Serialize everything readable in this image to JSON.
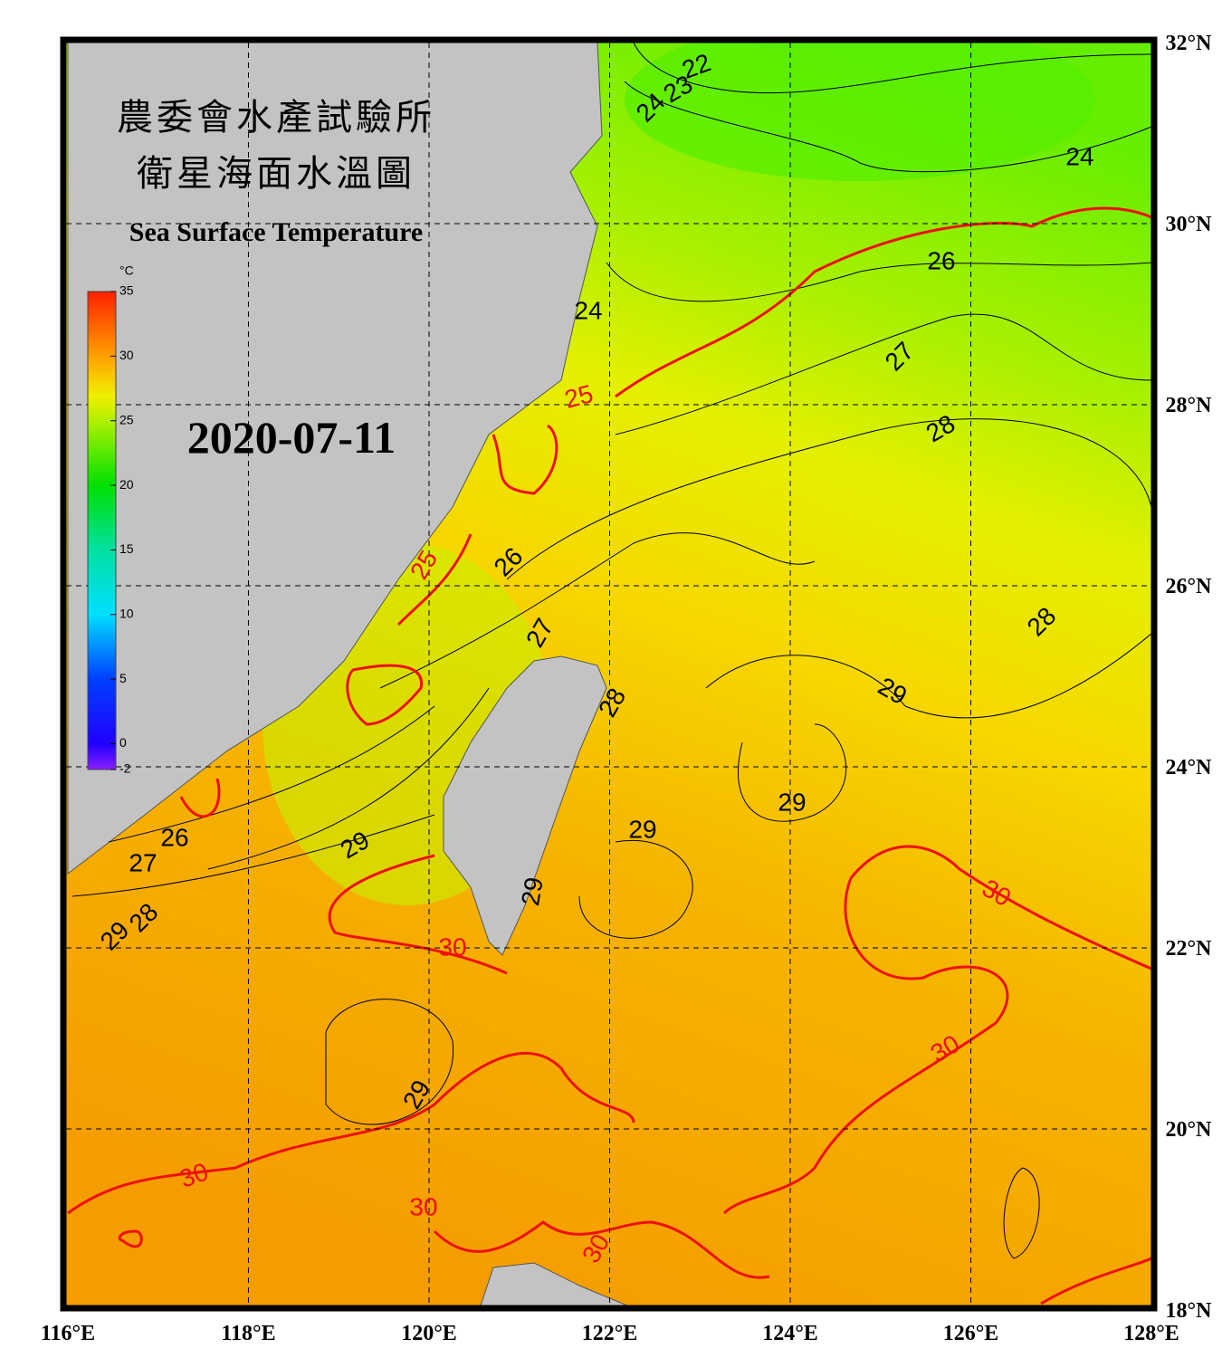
{
  "header": {
    "title_zh": [
      "農委會水產試驗所",
      "衛星海面水溫圖"
    ],
    "title_en": "Sea Surface Temperature",
    "date": "2020-07-11"
  },
  "colorbar": {
    "unit": "°C",
    "ticks": [
      35,
      30,
      25,
      20,
      15,
      10,
      5,
      0,
      -2
    ]
  },
  "axes": {
    "lon_labels": [
      "116°E",
      "118°E",
      "120°E",
      "122°E",
      "124°E",
      "126°E",
      "128°E"
    ],
    "lat_labels": [
      "32°N",
      "30°N",
      "28°N",
      "26°N",
      "24°N",
      "22°N",
      "20°N",
      "18°N"
    ]
  },
  "contours": {
    "labels": [
      {
        "text": "22",
        "color": "black"
      },
      {
        "text": "23",
        "color": "black"
      },
      {
        "text": "24",
        "color": "black"
      },
      {
        "text": "24",
        "color": "black"
      },
      {
        "text": "24",
        "color": "black"
      },
      {
        "text": "25",
        "color": "red"
      },
      {
        "text": "26",
        "color": "black"
      },
      {
        "text": "27",
        "color": "black"
      },
      {
        "text": "28",
        "color": "black"
      },
      {
        "text": "25",
        "color": "red"
      },
      {
        "text": "26",
        "color": "black"
      },
      {
        "text": "27",
        "color": "black"
      },
      {
        "text": "28",
        "color": "black"
      },
      {
        "text": "28",
        "color": "black"
      },
      {
        "text": "29",
        "color": "black"
      },
      {
        "text": "29",
        "color": "black"
      },
      {
        "text": "29",
        "color": "black"
      },
      {
        "text": "29",
        "color": "black"
      },
      {
        "text": "26",
        "color": "black"
      },
      {
        "text": "27",
        "color": "black"
      },
      {
        "text": "28",
        "color": "black"
      },
      {
        "text": "29",
        "color": "black"
      },
      {
        "text": "29",
        "color": "black"
      },
      {
        "text": "30",
        "color": "red"
      },
      {
        "text": "30",
        "color": "red"
      },
      {
        "text": "30",
        "color": "red"
      },
      {
        "text": "29",
        "color": "black"
      },
      {
        "text": "30",
        "color": "red"
      },
      {
        "text": "30",
        "color": "red"
      },
      {
        "text": "30",
        "color": "red"
      }
    ]
  }
}
